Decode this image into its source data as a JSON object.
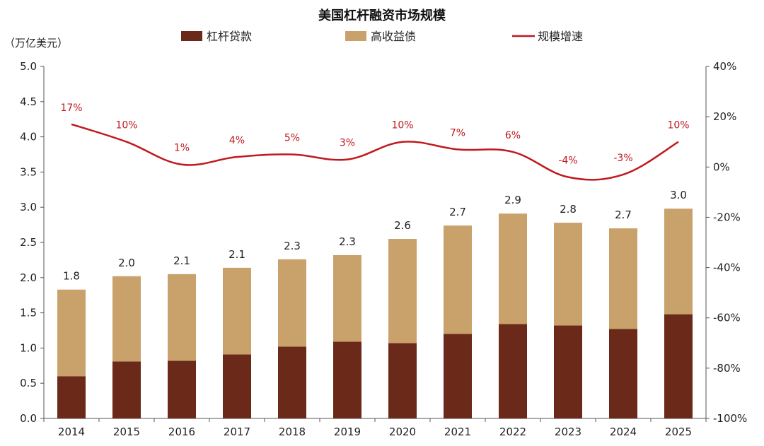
{
  "chart_data": {
    "type": "bar",
    "title": "美国杠杆融资市场规模",
    "y_unit_label": "（万亿美元）",
    "categories": [
      "2014",
      "2015",
      "2016",
      "2017",
      "2018",
      "2019",
      "2020",
      "2021",
      "2022",
      "2023",
      "2024",
      "2025"
    ],
    "series": [
      {
        "name": "杠杆贷款",
        "type": "bar",
        "stack": "a",
        "color": "#6b2a19",
        "values": [
          0.6,
          0.81,
          0.82,
          0.91,
          1.02,
          1.09,
          1.07,
          1.2,
          1.34,
          1.32,
          1.27,
          1.48
        ]
      },
      {
        "name": "高收益债",
        "type": "bar",
        "stack": "a",
        "color": "#c9a26b",
        "values": [
          1.23,
          1.21,
          1.23,
          1.23,
          1.24,
          1.23,
          1.48,
          1.54,
          1.57,
          1.46,
          1.43,
          1.5
        ]
      },
      {
        "name": "规模增速",
        "type": "line",
        "axis": "right",
        "color": "#c0191e",
        "values": [
          17,
          10,
          1,
          4,
          5,
          3,
          10,
          7,
          6,
          -4,
          -3,
          10
        ],
        "labels": [
          "17%",
          "10%",
          "1%",
          "4%",
          "5%",
          "3%",
          "10%",
          "7%",
          "6%",
          "-4%",
          "-3%",
          "10%"
        ]
      }
    ],
    "totals": [
      "1.8",
      "2.0",
      "2.1",
      "2.1",
      "2.3",
      "2.3",
      "2.6",
      "2.7",
      "2.9",
      "2.8",
      "2.7",
      "3.0"
    ],
    "ylim": [
      0,
      5
    ],
    "y_ticks": [
      "0.0",
      "0.5",
      "1.0",
      "1.5",
      "2.0",
      "2.5",
      "3.0",
      "3.5",
      "4.0",
      "4.5",
      "5.0"
    ],
    "y2lim": [
      -100,
      40
    ],
    "y2_ticks": [
      "-100%",
      "-80%",
      "-60%",
      "-40%",
      "-20%",
      "0%",
      "20%",
      "40%"
    ],
    "legend_position": "top",
    "grid": false
  }
}
